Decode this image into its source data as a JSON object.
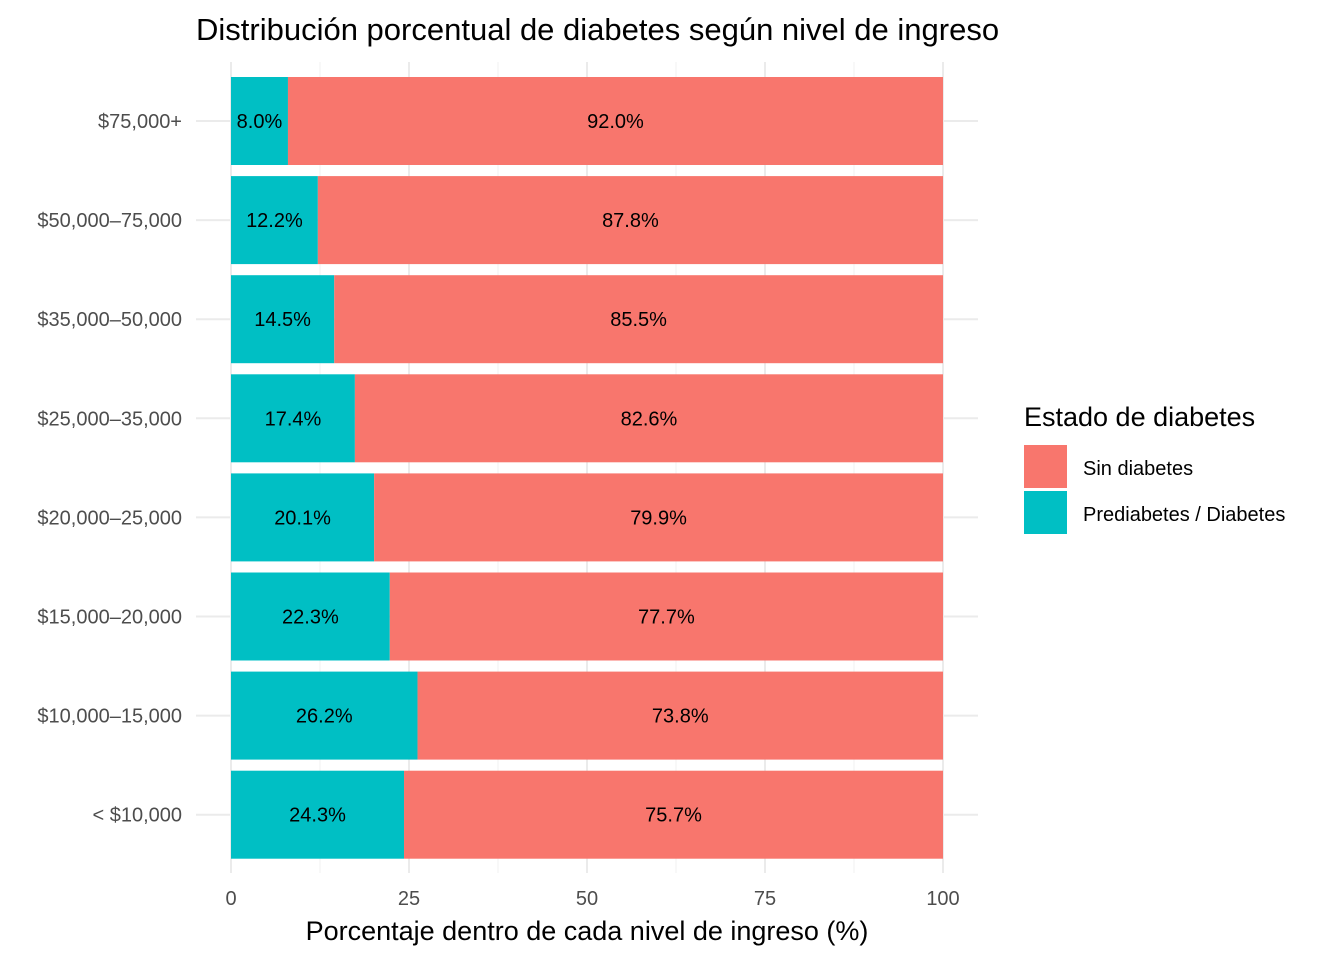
{
  "chart_data": {
    "type": "bar",
    "orientation": "horizontal",
    "stacked": true,
    "title": "Distribución porcentual de diabetes según nivel de ingreso",
    "xlabel": "Porcentaje dentro de cada nivel de ingreso (%)",
    "ylabel": "",
    "xlim": [
      0,
      100
    ],
    "xticks": [
      0,
      25,
      50,
      75,
      100
    ],
    "xtick_labels": [
      "0",
      "25",
      "50",
      "75",
      "100"
    ],
    "grid": true,
    "categories": [
      "< $10,000",
      "$10,000–15,000",
      "$15,000–20,000",
      "$20,000–25,000",
      "$25,000–35,000",
      "$35,000–50,000",
      "$50,000–75,000",
      "$75,000+"
    ],
    "series": [
      {
        "name": "Prediabetes / Diabetes",
        "color": "#00BFC4",
        "values": [
          24.3,
          26.2,
          22.3,
          20.1,
          17.4,
          14.5,
          12.2,
          8.0
        ],
        "labels": [
          "24.3%",
          "26.2%",
          "22.3%",
          "20.1%",
          "17.4%",
          "14.5%",
          "12.2%",
          "8.0%"
        ]
      },
      {
        "name": "Sin diabetes",
        "color": "#F8766D",
        "values": [
          75.7,
          73.8,
          77.7,
          79.9,
          82.6,
          85.5,
          87.8,
          92.0
        ],
        "labels": [
          "75.7%",
          "73.8%",
          "77.7%",
          "79.9%",
          "82.6%",
          "85.5%",
          "87.8%",
          "92.0%"
        ]
      }
    ],
    "legend": {
      "title": "Estado de diabetes",
      "position": "right",
      "items": [
        {
          "label": "Sin diabetes",
          "color": "#F8766D"
        },
        {
          "label": "Prediabetes / Diabetes",
          "color": "#00BFC4"
        }
      ]
    }
  }
}
